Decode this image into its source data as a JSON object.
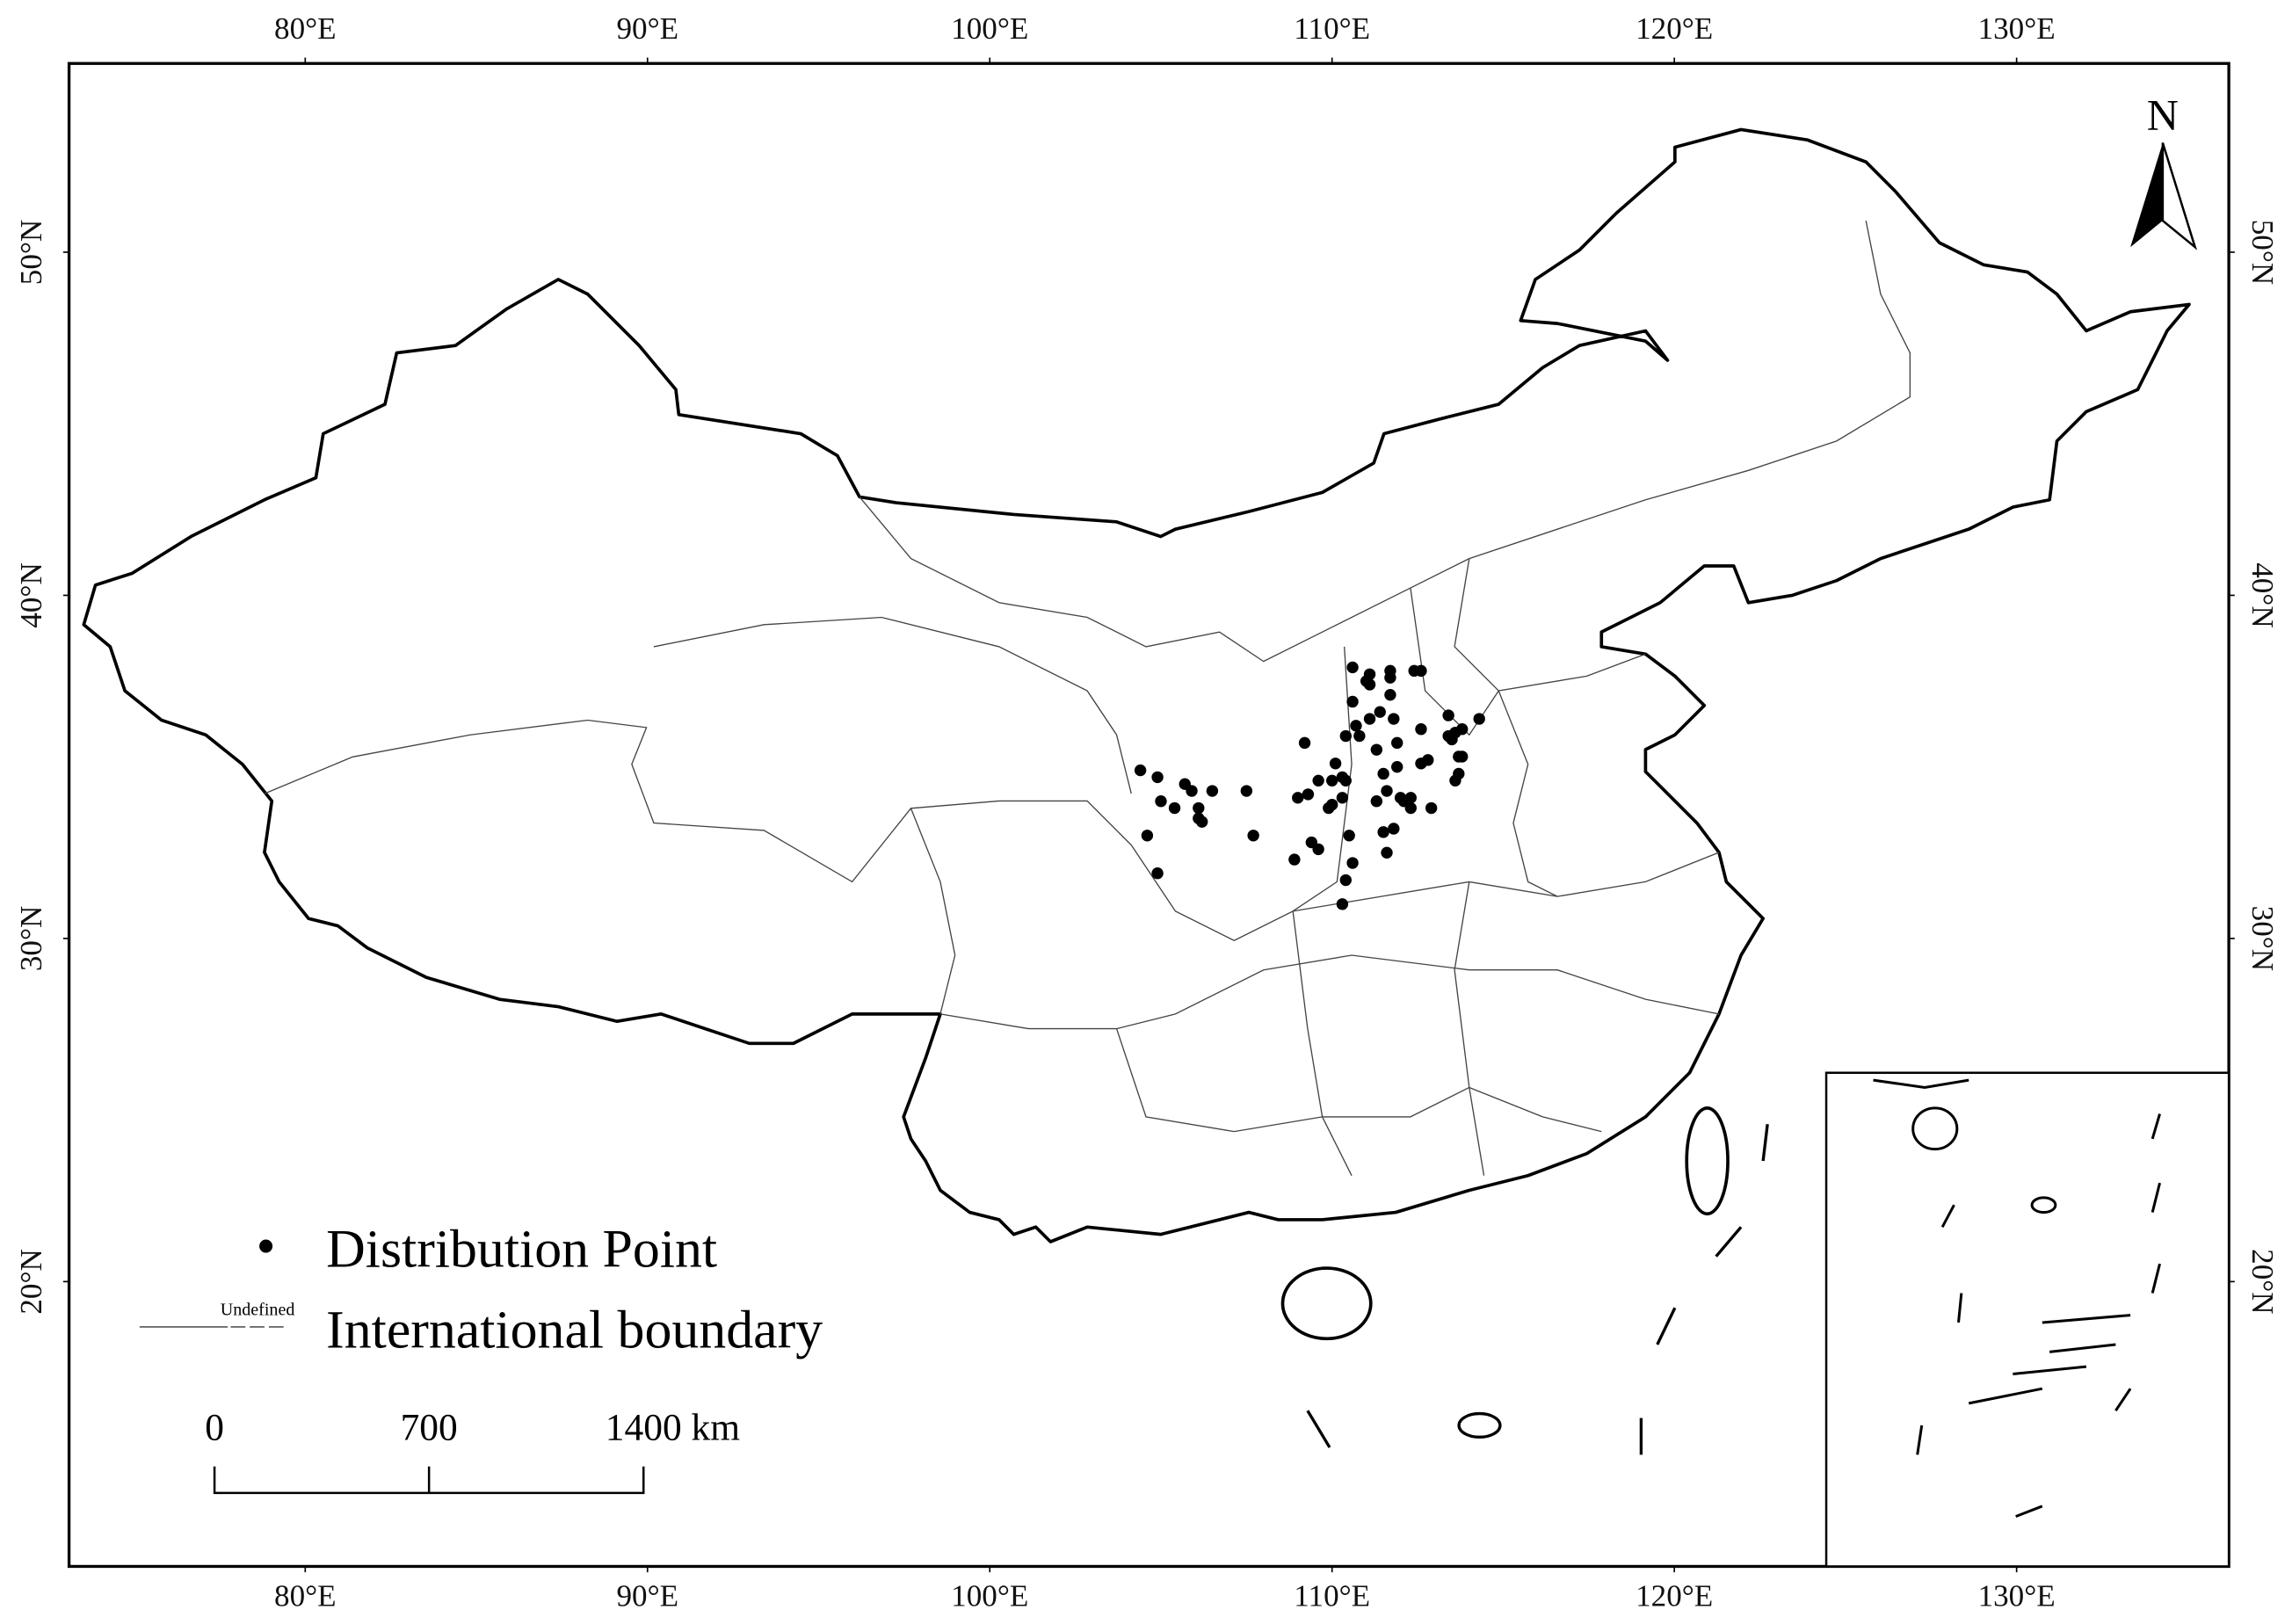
{
  "map": {
    "xlim": [
      73.1,
      136.2
    ],
    "ylim": [
      11.7,
      55.5
    ],
    "lon_ticks": [
      {
        "value": 80,
        "label": "80°E"
      },
      {
        "value": 90,
        "label": "90°E"
      },
      {
        "value": 100,
        "label": "100°E"
      },
      {
        "value": 110,
        "label": "110°E"
      },
      {
        "value": 120,
        "label": "120°E"
      },
      {
        "value": 130,
        "label": "130°E"
      }
    ],
    "lat_ticks": [
      {
        "value": 50,
        "label": "50°N"
      },
      {
        "value": 40,
        "label": "40°N"
      },
      {
        "value": 30,
        "label": "30°N"
      },
      {
        "value": 20,
        "label": "20°N"
      }
    ],
    "north_label": "N",
    "legend": {
      "points": "Distribution Point",
      "boundary_note": "Undefined",
      "boundary": "International boundary"
    },
    "scale_bar": {
      "labels": [
        "0",
        "700",
        "1400 km"
      ]
    },
    "points": [
      [
        104.4,
        34.9
      ],
      [
        104.9,
        34.7
      ],
      [
        105.0,
        34.0
      ],
      [
        105.4,
        33.8
      ],
      [
        105.7,
        34.5
      ],
      [
        105.9,
        34.3
      ],
      [
        106.1,
        33.8
      ],
      [
        106.1,
        33.5
      ],
      [
        106.2,
        33.4
      ],
      [
        106.5,
        34.3
      ],
      [
        104.6,
        33.0
      ],
      [
        104.9,
        31.9
      ],
      [
        107.5,
        34.3
      ],
      [
        107.7,
        33.0
      ],
      [
        108.9,
        32.3
      ],
      [
        109.0,
        34.1
      ],
      [
        109.2,
        35.7
      ],
      [
        109.3,
        34.2
      ],
      [
        109.4,
        32.8
      ],
      [
        109.6,
        32.6
      ],
      [
        109.6,
        34.6
      ],
      [
        109.9,
        33.8
      ],
      [
        110.0,
        34.6
      ],
      [
        110.1,
        35.1
      ],
      [
        110.3,
        34.1
      ],
      [
        110.3,
        34.7
      ],
      [
        110.4,
        31.7
      ],
      [
        110.5,
        33.0
      ],
      [
        110.6,
        32.2
      ],
      [
        110.3,
        31.0
      ],
      [
        110.6,
        37.9
      ],
      [
        110.6,
        36.9
      ],
      [
        110.7,
        36.2
      ],
      [
        110.8,
        35.9
      ],
      [
        111.0,
        37.5
      ],
      [
        111.1,
        37.4
      ],
      [
        111.1,
        36.4
      ],
      [
        111.3,
        34.0
      ],
      [
        111.3,
        35.5
      ],
      [
        111.4,
        36.6
      ],
      [
        111.5,
        34.8
      ],
      [
        111.6,
        34.3
      ],
      [
        111.7,
        37.1
      ],
      [
        111.7,
        37.6
      ],
      [
        111.7,
        37.8
      ],
      [
        111.8,
        36.4
      ],
      [
        111.9,
        35.7
      ],
      [
        111.9,
        35.0
      ],
      [
        111.8,
        33.2
      ],
      [
        111.5,
        33.1
      ],
      [
        112.0,
        34.1
      ],
      [
        112.1,
        34.0
      ],
      [
        112.3,
        33.8
      ],
      [
        112.3,
        34.1
      ],
      [
        112.4,
        37.8
      ],
      [
        112.6,
        37.8
      ],
      [
        112.6,
        35.1
      ],
      [
        112.8,
        35.2
      ],
      [
        112.9,
        33.8
      ],
      [
        112.6,
        36.1
      ],
      [
        113.4,
        36.5
      ],
      [
        113.4,
        35.9
      ],
      [
        113.5,
        35.8
      ],
      [
        113.6,
        36.0
      ],
      [
        113.7,
        35.3
      ],
      [
        113.7,
        34.8
      ],
      [
        113.8,
        36.1
      ],
      [
        113.6,
        34.6
      ],
      [
        113.8,
        35.3
      ],
      [
        114.3,
        36.4
      ],
      [
        110.4,
        34.6
      ],
      [
        110.0,
        33.9
      ],
      [
        111.1,
        37.7
      ],
      [
        111.6,
        32.5
      ],
      [
        110.4,
        35.9
      ]
    ]
  }
}
